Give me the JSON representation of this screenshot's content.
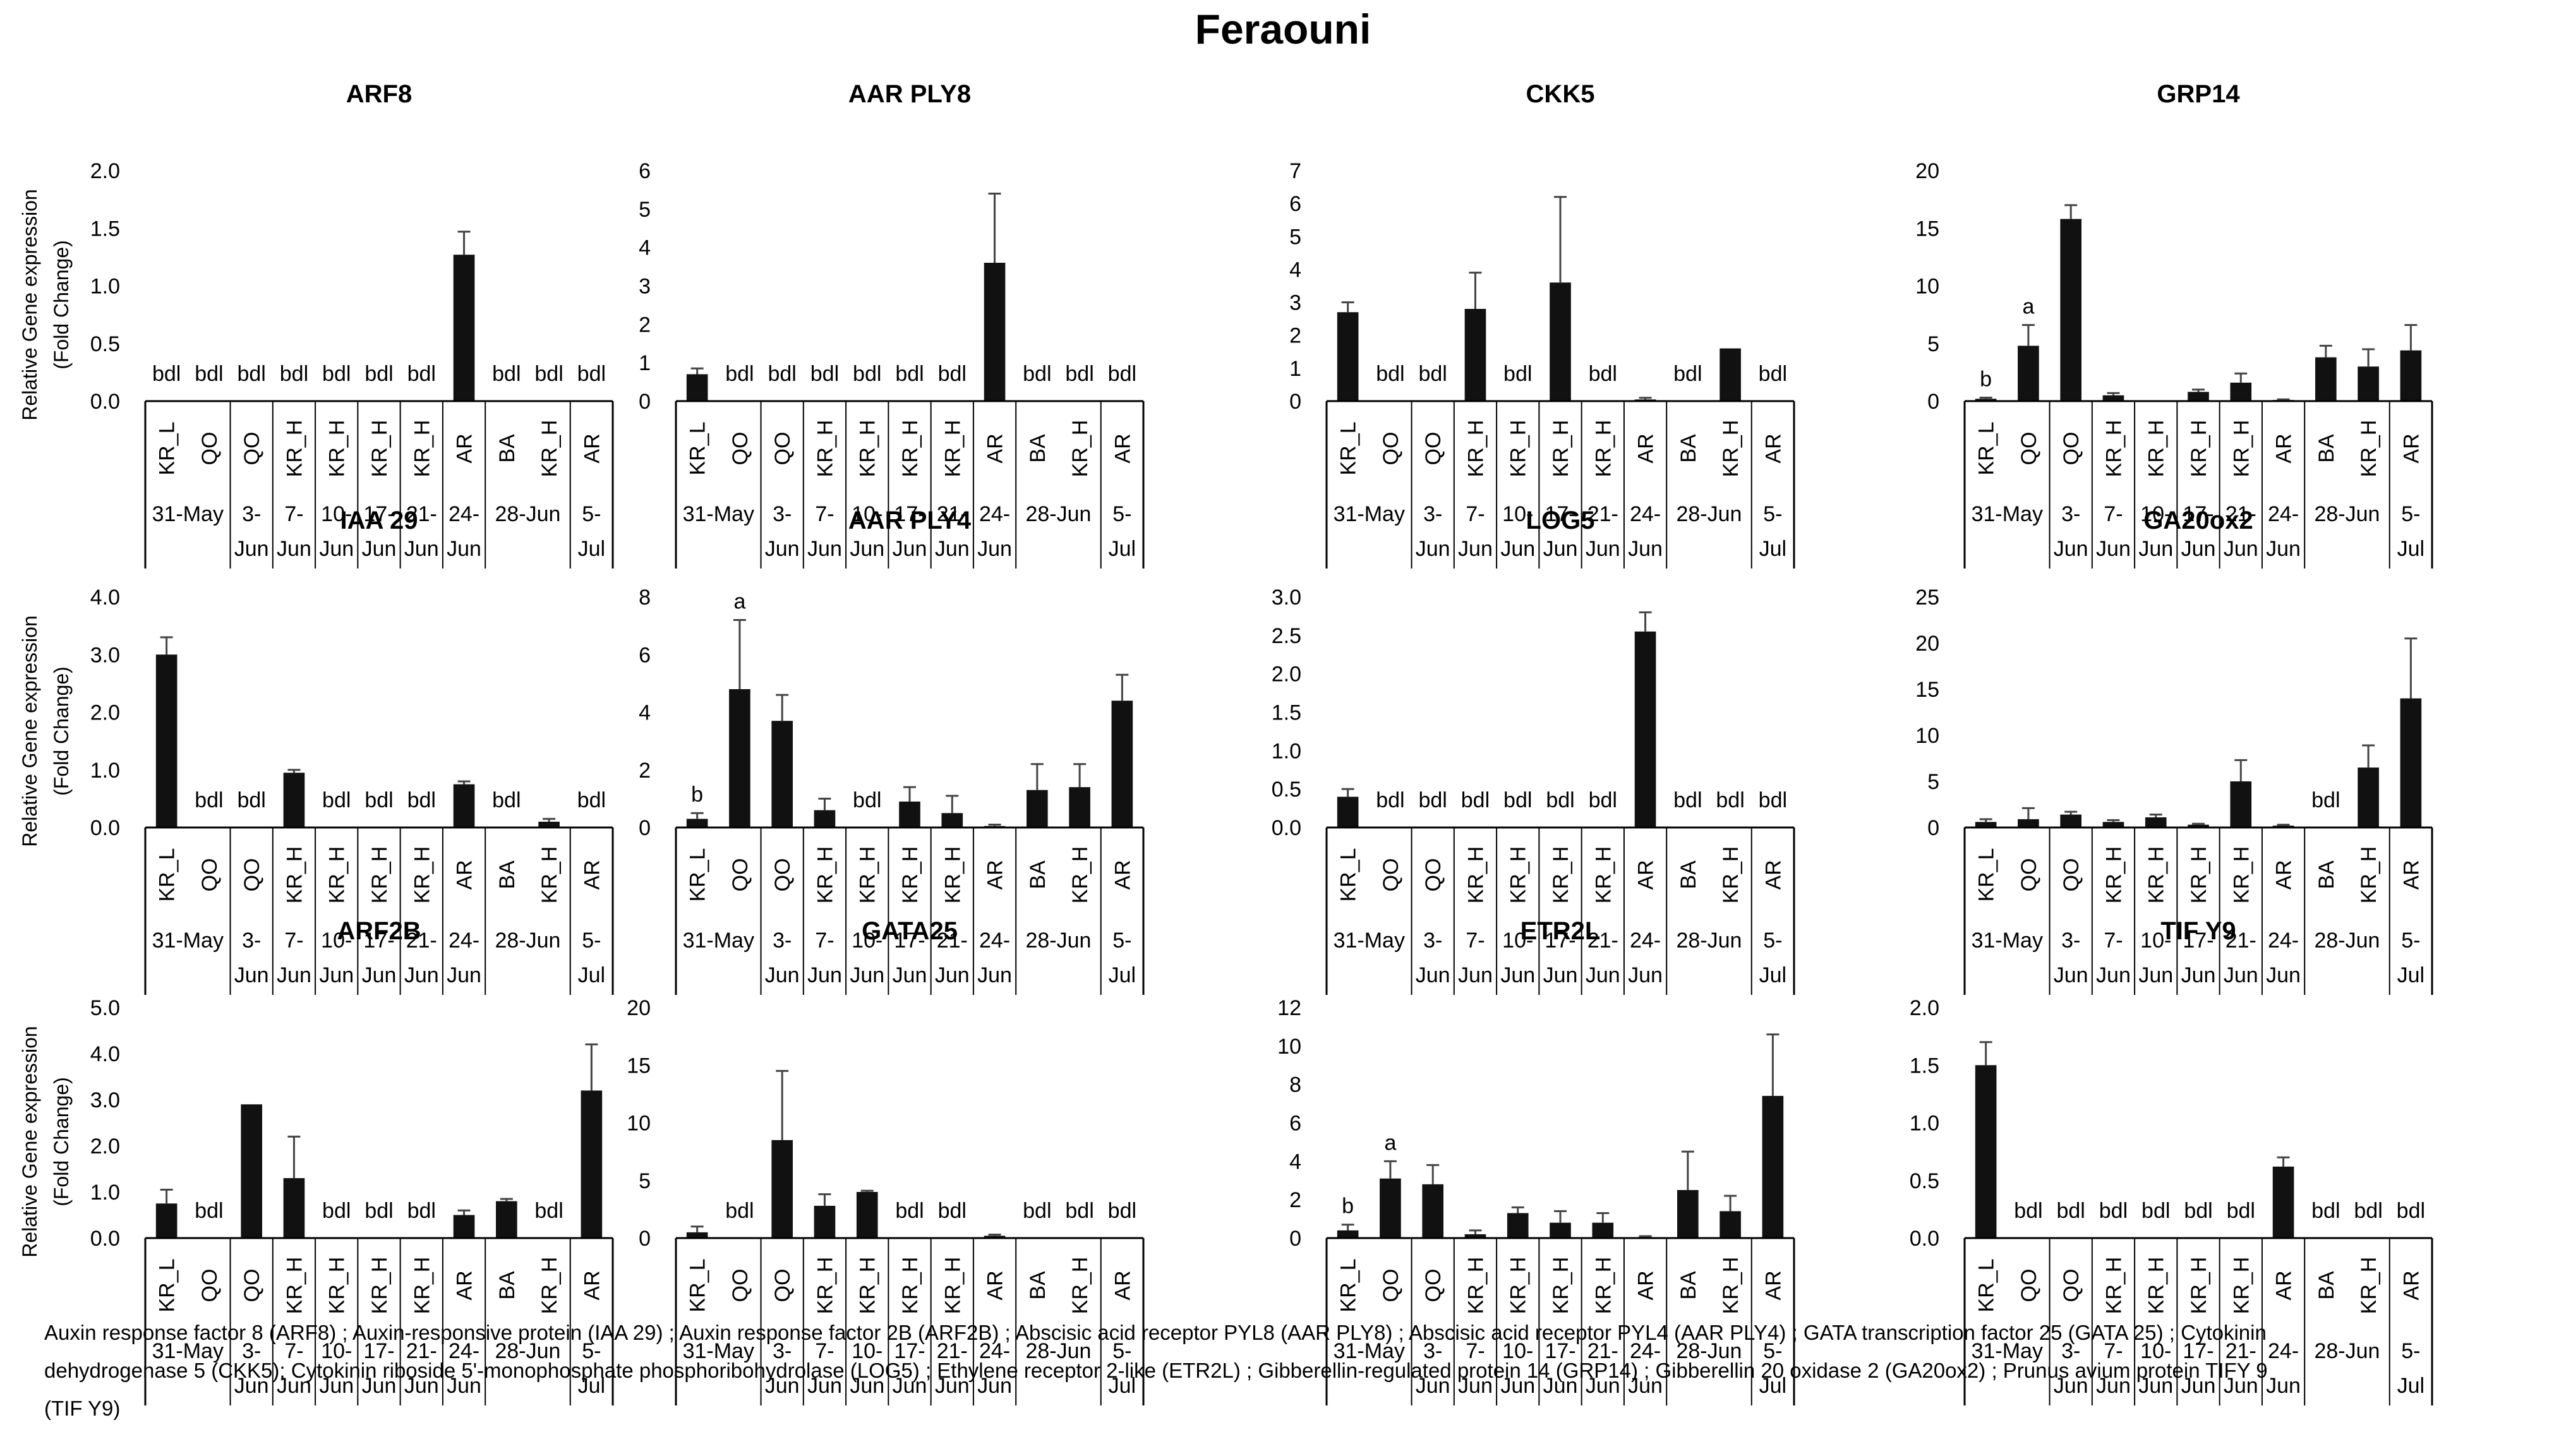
{
  "title": "Feraouni",
  "ylabel_line1": "Relative Gene expression",
  "ylabel_line2": "(Fold Change)",
  "sample_labels": [
    "KR_L",
    "QO",
    "QO",
    "KR_H",
    "KR_H",
    "KR_H",
    "KR_H",
    "AR",
    "BA",
    "KR_H",
    "AR"
  ],
  "date_groups": [
    {
      "label": "31-May",
      "span": 2
    },
    {
      "label": "3-Jun",
      "span": 1
    },
    {
      "label": "7-Jun",
      "span": 1
    },
    {
      "label": "10-Jun",
      "span": 1
    },
    {
      "label": "17-Jun",
      "span": 1
    },
    {
      "label": "21-Jun",
      "span": 1
    },
    {
      "label": "24-Jun",
      "span": 1
    },
    {
      "label": "28-Jun",
      "span": 2
    },
    {
      "label": "5-Jul",
      "span": 1
    }
  ],
  "chart_data": [
    {
      "type": "bar",
      "title": "ARF8",
      "yticks": [
        "0.0",
        "0.5",
        "1.0",
        "1.5",
        "2.0"
      ],
      "ylim": [
        0,
        2
      ],
      "values": [
        null,
        null,
        null,
        null,
        null,
        null,
        null,
        1.27,
        null,
        null,
        null
      ],
      "errors": [
        0,
        0,
        0,
        0,
        0,
        0,
        0,
        0.2,
        0,
        0,
        0
      ],
      "annotations": [
        "bdl",
        "bdl",
        "bdl",
        "bdl",
        "bdl",
        "bdl",
        "bdl",
        "",
        "bdl",
        "bdl",
        "bdl"
      ]
    },
    {
      "type": "bar",
      "title": "AAR PLY8",
      "yticks": [
        "0",
        "1",
        "2",
        "3",
        "4",
        "5",
        "6"
      ],
      "ylim": [
        0,
        6
      ],
      "values": [
        0.7,
        null,
        null,
        null,
        null,
        null,
        null,
        3.6,
        null,
        null,
        null
      ],
      "errors": [
        0.15,
        0,
        0,
        0,
        0,
        0,
        0,
        1.8,
        0,
        0,
        0
      ],
      "annotations": [
        "",
        "bdl",
        "bdl",
        "bdl",
        "bdl",
        "bdl",
        "bdl",
        "",
        "bdl",
        "bdl",
        "bdl"
      ]
    },
    {
      "type": "bar",
      "title": "CKK5",
      "yticks": [
        "0",
        "1",
        "2",
        "3",
        "4",
        "5",
        "6",
        "7"
      ],
      "ylim": [
        0,
        7
      ],
      "values": [
        2.7,
        null,
        null,
        2.8,
        null,
        3.6,
        null,
        0.05,
        null,
        1.6,
        null
      ],
      "errors": [
        0.3,
        0,
        0,
        1.1,
        0,
        2.6,
        0,
        0.05,
        0,
        0,
        0
      ],
      "annotations": [
        "",
        "bdl",
        "bdl",
        "",
        "bdl",
        "",
        "bdl",
        "",
        "bdl",
        "",
        "bdl"
      ]
    },
    {
      "type": "bar",
      "title": "GRP14",
      "yticks": [
        "0",
        "5",
        "10",
        "15",
        "20"
      ],
      "ylim": [
        0,
        20
      ],
      "values": [
        0.2,
        4.8,
        15.8,
        0.5,
        null,
        0.8,
        1.6,
        0.1,
        3.8,
        3.0,
        4.4
      ],
      "errors": [
        0.1,
        1.8,
        1.2,
        0.2,
        0,
        0.2,
        0.8,
        0.05,
        1.0,
        1.5,
        2.2
      ],
      "annotations": [
        "b",
        "a",
        "",
        "",
        "",
        "",
        "",
        "",
        "",
        "",
        ""
      ]
    },
    {
      "type": "bar",
      "title": "IAA 29",
      "yticks": [
        "0.0",
        "1.0",
        "2.0",
        "3.0",
        "4.0"
      ],
      "ylim": [
        0,
        4
      ],
      "values": [
        3.0,
        null,
        null,
        0.95,
        null,
        null,
        null,
        0.75,
        null,
        0.1,
        null
      ],
      "errors": [
        0.3,
        0,
        0,
        0.05,
        0,
        0,
        0,
        0.05,
        0,
        0.05,
        0
      ],
      "annotations": [
        "",
        "bdl",
        "bdl",
        "",
        "bdl",
        "bdl",
        "bdl",
        "",
        "bdl",
        "",
        "bdl"
      ]
    },
    {
      "type": "bar",
      "title": "AAR PLY4",
      "yticks": [
        "0",
        "2",
        "4",
        "6",
        "8"
      ],
      "ylim": [
        0,
        8
      ],
      "values": [
        0.3,
        4.8,
        3.7,
        0.6,
        null,
        0.9,
        0.5,
        0.05,
        1.3,
        1.4,
        4.4
      ],
      "errors": [
        0.2,
        2.4,
        0.9,
        0.4,
        0,
        0.5,
        0.6,
        0.05,
        0.9,
        0.8,
        0.9
      ],
      "annotations": [
        "b",
        "a",
        "",
        "",
        "bdl",
        "",
        "",
        "",
        "",
        "",
        ""
      ]
    },
    {
      "type": "bar",
      "title": "LOG5",
      "yticks": [
        "0.0",
        "0.5",
        "1.0",
        "1.5",
        "2.0",
        "2.5",
        "3.0"
      ],
      "ylim": [
        0,
        3
      ],
      "values": [
        0.4,
        null,
        null,
        null,
        null,
        null,
        null,
        2.55,
        null,
        null,
        null
      ],
      "errors": [
        0.1,
        0,
        0,
        0,
        0,
        0,
        0,
        0.25,
        0,
        0,
        0
      ],
      "annotations": [
        "",
        "bdl",
        "bdl",
        "bdl",
        "bdl",
        "bdl",
        "bdl",
        "",
        "bdl",
        "bdl",
        "bdl"
      ]
    },
    {
      "type": "bar",
      "title": "GA20ox2",
      "yticks": [
        "0",
        "5",
        "10",
        "15",
        "20",
        "25"
      ],
      "ylim": [
        0,
        25
      ],
      "values": [
        0.6,
        0.9,
        1.4,
        0.6,
        1.1,
        0.3,
        5.0,
        0.2,
        null,
        6.5,
        14.0
      ],
      "errors": [
        0.3,
        1.2,
        0.3,
        0.2,
        0.3,
        0.1,
        2.3,
        0.1,
        0,
        2.4,
        6.5
      ],
      "annotations": [
        "",
        "",
        "",
        "",
        "",
        "",
        "",
        "",
        "bdl",
        "",
        ""
      ]
    },
    {
      "type": "bar",
      "title": "ARF2B",
      "yticks": [
        "0.0",
        "1.0",
        "2.0",
        "3.0",
        "4.0",
        "5.0"
      ],
      "ylim": [
        0,
        5
      ],
      "values": [
        0.75,
        null,
        2.9,
        1.3,
        null,
        null,
        null,
        0.5,
        0.8,
        null,
        3.2
      ],
      "errors": [
        0.3,
        0,
        0,
        0.9,
        0,
        0,
        0,
        0.1,
        0.05,
        0,
        1.0
      ],
      "annotations": [
        "",
        "bdl",
        "",
        "",
        "bdl",
        "bdl",
        "bdl",
        "",
        "",
        "bdl",
        ""
      ]
    },
    {
      "type": "bar",
      "title": "GATA25",
      "yticks": [
        "0",
        "5",
        "10",
        "15",
        "20"
      ],
      "ylim": [
        0,
        20
      ],
      "values": [
        0.5,
        null,
        8.5,
        2.8,
        4.0,
        null,
        null,
        0.2,
        null,
        null,
        null
      ],
      "errors": [
        0.5,
        0,
        6.0,
        1.0,
        0.1,
        0,
        0,
        0.1,
        0,
        0,
        0
      ],
      "annotations": [
        "",
        "bdl",
        "",
        "",
        "",
        "bdl",
        "bdl",
        "",
        "bdl",
        "bdl",
        "bdl"
      ]
    },
    {
      "type": "bar",
      "title": "ETR2L",
      "yticks": [
        "0",
        "2",
        "4",
        "6",
        "8",
        "10",
        "12"
      ],
      "ylim": [
        0,
        12
      ],
      "values": [
        0.4,
        3.1,
        2.8,
        0.2,
        1.3,
        0.8,
        0.8,
        0.05,
        2.5,
        1.4,
        7.4
      ],
      "errors": [
        0.3,
        0.9,
        1.0,
        0.2,
        0.3,
        0.6,
        0.5,
        0.05,
        2.0,
        0.8,
        3.2
      ],
      "annotations": [
        "b",
        "a",
        "",
        "",
        "",
        "",
        "",
        "",
        "",
        "",
        ""
      ]
    },
    {
      "type": "bar",
      "title": "TIF Y9",
      "yticks": [
        "0.0",
        "0.5",
        "1.0",
        "1.5",
        "2.0"
      ],
      "ylim": [
        0,
        2
      ],
      "values": [
        1.5,
        null,
        null,
        null,
        null,
        null,
        null,
        0.62,
        null,
        null,
        null
      ],
      "errors": [
        0.2,
        0,
        0,
        0,
        0,
        0,
        0,
        0.08,
        0,
        0,
        0
      ],
      "annotations": [
        "",
        "bdl",
        "bdl",
        "bdl",
        "bdl",
        "bdl",
        "bdl",
        "",
        "bdl",
        "bdl",
        "bdl"
      ]
    }
  ],
  "caption_parts": [
    "Auxin response factor 8  (ARF8) ; Auxin-responsive protein (IAA 29) ; Auxin response factor 2B (ARF2B) ; Abscisic acid receptor PYL8 (AAR PLY8)  ; Abscisic acid receptor PYL4 (AAR PLY4)  ; GATA  transcription factor 25 (GATA 25) ; Cytokinin",
    "dehydrogenase 5 (CKK5); Cytokinin riboside 5'-monophosphate  phosphoribohydrolase (LOG5) ; Ethylene receptor 2-like (ETR2L) ; Gibberellin-regulated  protein 14 (GRP14) ; Gibberellin 20 oxidase 2 (GA20ox2) ; Prunus avium protein TIFY 9",
    "(TIF Y9)"
  ]
}
